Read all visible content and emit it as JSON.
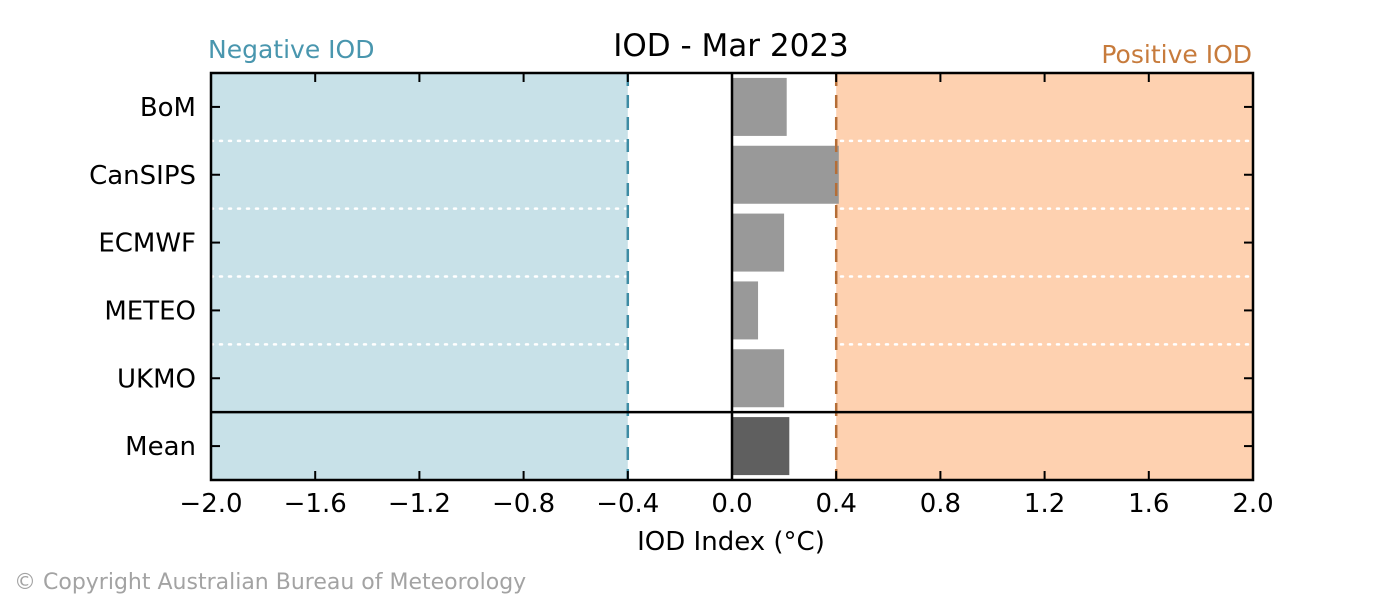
{
  "chart_data": {
    "type": "bar",
    "orientation": "horizontal",
    "title": "IOD - Mar 2023",
    "xlabel": "IOD Index (°C)",
    "ylabel": "",
    "xlim": [
      -2.0,
      2.0
    ],
    "xticks": [
      "−2.0",
      "−1.6",
      "−1.2",
      "−0.8",
      "−0.4",
      "0.0",
      "0.4",
      "0.8",
      "1.2",
      "1.6",
      "2.0"
    ],
    "xtick_values": [
      -2.0,
      -1.6,
      -1.2,
      -0.8,
      -0.4,
      0.0,
      0.4,
      0.8,
      1.2,
      1.6,
      2.0
    ],
    "categories": [
      "BoM",
      "CanSIPS",
      "ECMWF",
      "METEO",
      "UKMO",
      "Mean"
    ],
    "values": [
      0.21,
      0.41,
      0.2,
      0.1,
      0.2,
      0.22
    ],
    "thresholds": {
      "negative": -0.4,
      "positive": 0.4
    },
    "regions": {
      "negative_label": "Negative IOD",
      "positive_label": "Positive IOD"
    },
    "grid": false,
    "legend": "none",
    "colors": {
      "negative_region": "#c8e1e8",
      "positive_region": "#fed1b0",
      "negative_text": "#4996ae",
      "positive_text": "#c77b3c",
      "negative_line": "#3e8ca4",
      "positive_line": "#b56e37",
      "model_bar": "#999999",
      "mean_bar": "#5f5f5f"
    }
  },
  "footer": {
    "copyright": "© Copyright Australian Bureau of Meteorology"
  }
}
